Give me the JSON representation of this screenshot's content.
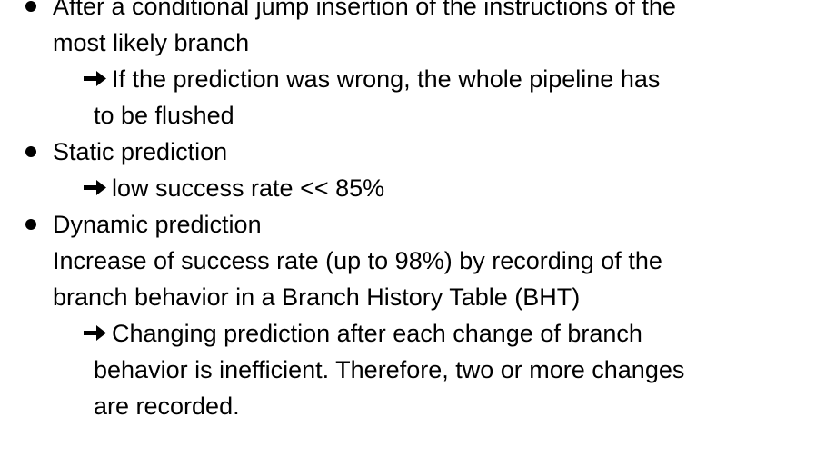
{
  "items": [
    {
      "lines": [
        "After a conditional jump insertion of the instructions of the",
        "most likely branch"
      ],
      "sub": {
        "lines": [
          "If the prediction was wrong, the whole pipeline has",
          "to be flushed"
        ]
      }
    },
    {
      "lines": [
        "Static prediction"
      ],
      "sub": {
        "lines": [
          "low success rate  << 85%"
        ]
      }
    },
    {
      "lines": [
        "Dynamic prediction",
        "Increase of success rate (up to 98%) by recording of the",
        "branch behavior in a Branch History Table (BHT)"
      ],
      "sub": {
        "lines": [
          "Changing prediction after each change of branch",
          "behavior is inefficient. Therefore, two or more changes",
          "are recorded."
        ]
      }
    }
  ],
  "icons": {
    "bullet": "filled-circle-bullet-icon",
    "arrow": "right-arrow-icon"
  }
}
